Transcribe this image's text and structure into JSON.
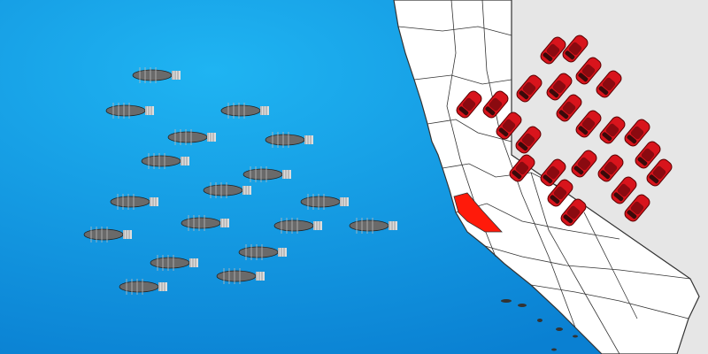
{
  "colors": {
    "ocean_light": "#1fb4f2",
    "ocean_dark": "#0a80d2",
    "land": "#ffffff",
    "neighbor_land": "#e6e6e6",
    "borders": "#333333",
    "highlighted_county": "#ff1a0a",
    "car": "#d8141c",
    "fish": "#6a6a6a"
  },
  "icons": {
    "car": "car-icon",
    "fish": "fish-icon"
  },
  "counts": {
    "cars": 24,
    "fish": 18
  }
}
